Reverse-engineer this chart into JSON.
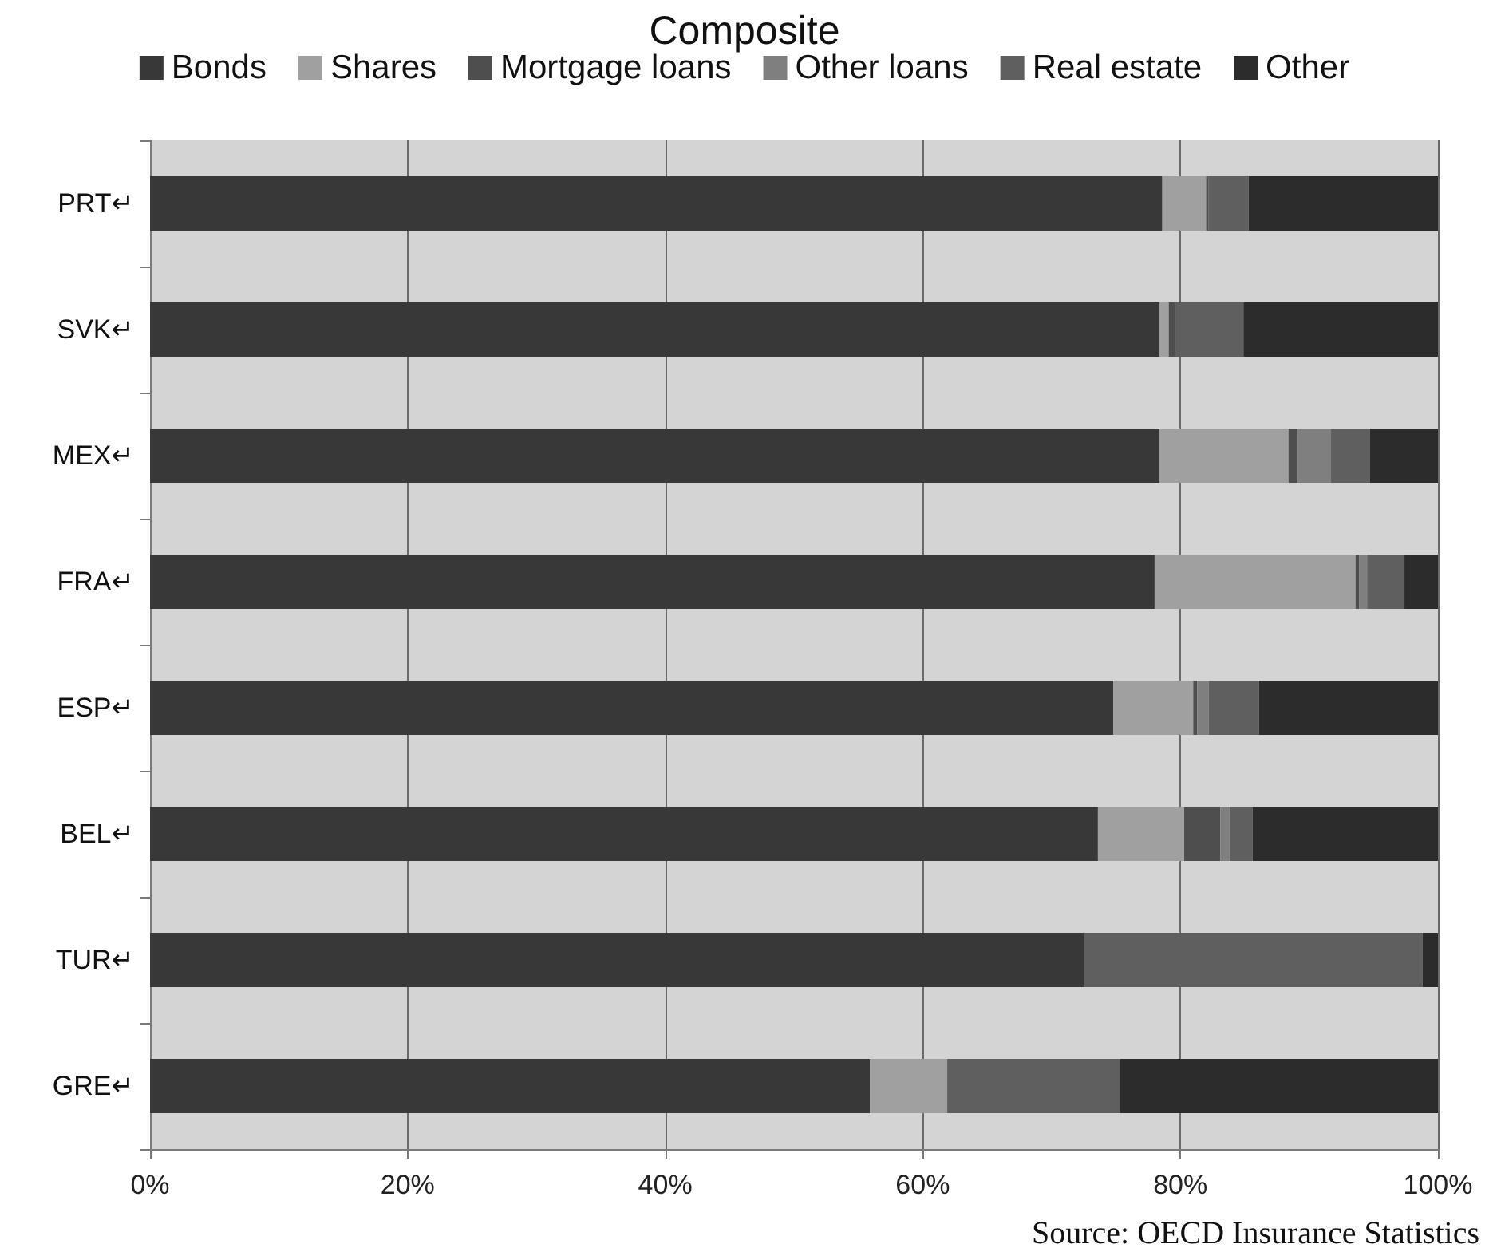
{
  "chart_data": {
    "type": "bar",
    "title": "Composite",
    "orientation": "horizontal",
    "stacked": true,
    "categories": [
      "PRT↵",
      "SVK↵",
      "MEX↵",
      "FRA↵",
      "ESP↵",
      "BEL↵",
      "TUR↵",
      "GRE↵"
    ],
    "series": [
      {
        "name": "Bonds",
        "color": "#383838",
        "values": [
          78.6,
          78.4,
          78.4,
          78.0,
          74.8,
          73.6,
          72.5,
          55.9
        ]
      },
      {
        "name": "Shares",
        "color": "#a0a0a0",
        "values": [
          3.4,
          0.7,
          10.0,
          15.6,
          6.2,
          6.7,
          0,
          6.0
        ]
      },
      {
        "name": "Mortgage loans",
        "color": "#4e4e4e",
        "values": [
          0.2,
          0.5,
          0.7,
          0.3,
          0.3,
          2.8,
          0,
          0
        ]
      },
      {
        "name": "Other loans",
        "color": "#7f7f7f",
        "values": [
          0,
          0,
          2.6,
          0.6,
          0.9,
          0.7,
          0,
          0
        ]
      },
      {
        "name": "Real estate",
        "color": "#5f5f5f",
        "values": [
          3.1,
          5.3,
          3.0,
          2.9,
          3.9,
          1.8,
          26.3,
          13.4
        ]
      },
      {
        "name": "Other",
        "color": "#2c2c2c",
        "values": [
          14.7,
          15.1,
          5.3,
          2.6,
          13.9,
          14.4,
          1.2,
          24.7
        ]
      }
    ],
    "xlim": [
      0,
      100
    ],
    "xticks": [
      {
        "value": 0,
        "label": "0%"
      },
      {
        "value": 20,
        "label": "20%"
      },
      {
        "value": 40,
        "label": "40%"
      },
      {
        "value": 60,
        "label": "60%"
      },
      {
        "value": 80,
        "label": "80%"
      },
      {
        "value": 100,
        "label": "100%"
      }
    ],
    "grid": "x",
    "legend": "top",
    "annotations": [
      "Source: OECD Insurance Statistics"
    ]
  }
}
